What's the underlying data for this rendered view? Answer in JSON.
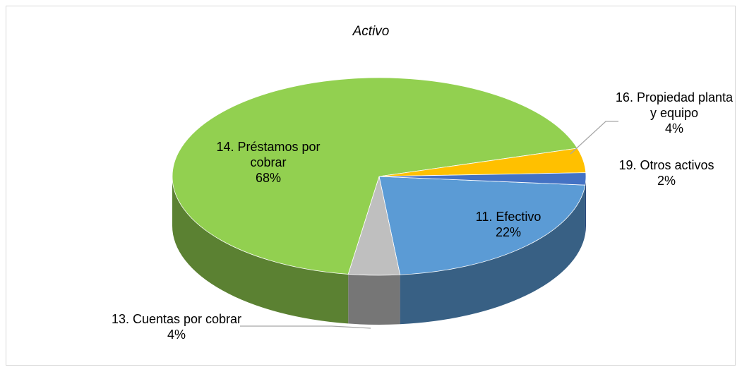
{
  "chart_data": {
    "type": "pie",
    "title": "Activo",
    "categories": [
      "11. Efectivo",
      "13. Cuentas por cobrar",
      "14. Préstamos por cobrar",
      "16. Propiedad planta y equipo",
      "19. Otros activos"
    ],
    "values": [
      22,
      4,
      68,
      4,
      2
    ],
    "value_labels": [
      "22%",
      "4%",
      "68%",
      "4%",
      "2%"
    ],
    "colors": [
      "#5b9bd5",
      "#bfbfbf",
      "#92d050",
      "#ffc000",
      "#4472c4"
    ]
  }
}
